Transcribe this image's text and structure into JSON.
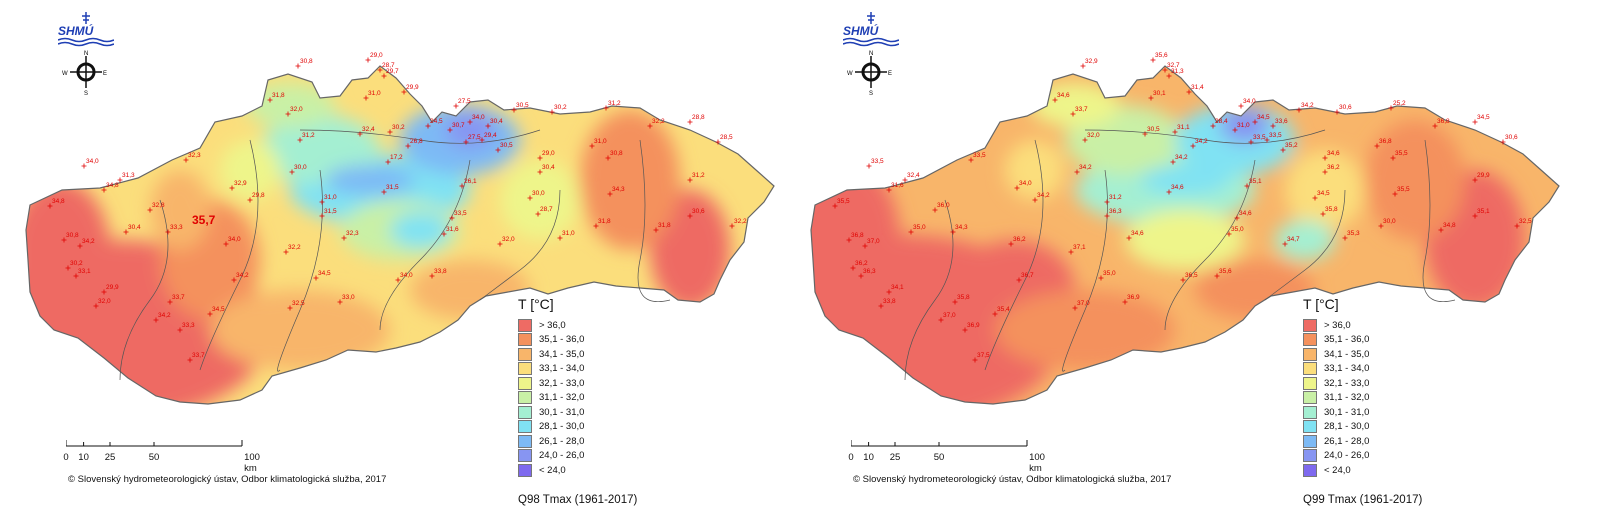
{
  "organization": "SHMÚ",
  "compass": {
    "n": "N",
    "s": "S",
    "e": "E",
    "w": "W"
  },
  "legend": {
    "title": "T [°C]",
    "classes": [
      {
        "label": "> 36,0",
        "color": "#ee6b64"
      },
      {
        "label": "35,1 - 36,0",
        "color": "#f4915d"
      },
      {
        "label": "34,1 - 35,0",
        "color": "#f8b56a"
      },
      {
        "label": "33,1 - 34,0",
        "color": "#fbde7c"
      },
      {
        "label": "32,1 - 33,0",
        "color": "#eef58a"
      },
      {
        "label": "31,1 - 32,0",
        "color": "#c9f0a6"
      },
      {
        "label": "30,1 - 31,0",
        "color": "#a4efd2"
      },
      {
        "label": "28,1 - 30,0",
        "color": "#80e2f3"
      },
      {
        "label": "26,1 - 28,0",
        "color": "#7dbaf5"
      },
      {
        "label": "24,0 - 26,0",
        "color": "#8795f2"
      },
      {
        "label": "< 24,0",
        "color": "#7e69ee"
      }
    ]
  },
  "scale": {
    "labels": [
      "0",
      "10",
      "25",
      "50",
      "100 km"
    ]
  },
  "copyright": "© Slovenský hydrometeorologický ústav, Odbor klimatologická služba, 2017",
  "maps": [
    {
      "caption": "Q98 Tmax (1961-2017)",
      "highlight": "35,7",
      "stations": [
        "30,8",
        "29,0",
        "28,7",
        "29,7",
        "31,8",
        "32,0",
        "31,0",
        "29,9",
        "27,5",
        "34,0",
        "30,4",
        "30,5",
        "30,2",
        "31,2",
        "32,4",
        "30,2",
        "26,8",
        "24,5",
        "30,7",
        "27,5",
        "29,4",
        "30,5",
        "29,0",
        "31,3",
        "32,3",
        "17,2",
        "31,2",
        "30,8",
        "32,2",
        "28,8",
        "28,5",
        "34,0",
        "34,8",
        "32,9",
        "30,0",
        "26,1",
        "30,4",
        "31,0",
        "29,8",
        "31,0",
        "31,5",
        "30,0",
        "31,2",
        "34,8",
        "32,8",
        "31,5",
        "33,5",
        "28,7",
        "31,8",
        "31,8",
        "30,6",
        "32,2",
        "30,8",
        "34,2",
        "30,4",
        "33,3",
        "34,0",
        "32,3",
        "31,6",
        "32,0",
        "31,0",
        "34,3",
        "30,2",
        "33,1",
        "29,9",
        "32,0",
        "32,2",
        "34,5",
        "33,8",
        "33,7",
        "34,2",
        "34,0",
        "32,5",
        "33,0",
        "34,2",
        "33,3",
        "34,5",
        "33,7"
      ]
    },
    {
      "caption": "Q99 Tmax (1961-2017)",
      "highlight": "",
      "stations": [
        "32,9",
        "35,6",
        "32,7",
        "31,3",
        "34,6",
        "33,7",
        "30,1",
        "31,4",
        "34,0",
        "34,5",
        "33,6",
        "34,2",
        "30,6",
        "25,2",
        "30,5",
        "31,1",
        "34,2",
        "28,4",
        "31,0",
        "33,5",
        "33,5",
        "35,2",
        "34,6",
        "32,4",
        "33,5",
        "34,2",
        "32,0",
        "35,5",
        "36,8",
        "34,5",
        "30,6",
        "33,5",
        "31,6",
        "34,0",
        "34,2",
        "35,1",
        "36,2",
        "36,8",
        "34,2",
        "31,2",
        "34,6",
        "34,5",
        "29,9",
        "35,5",
        "36,0",
        "36,3",
        "34,6",
        "35,8",
        "30,0",
        "34,8",
        "35,1",
        "32,5",
        "36,8",
        "37,0",
        "35,0",
        "34,3",
        "36,2",
        "34,6",
        "35,0",
        "34,7",
        "35,3",
        "35,5",
        "36,2",
        "36,3",
        "34,1",
        "33,8",
        "37,1",
        "35,0",
        "35,6",
        "35,8",
        "36,7",
        "36,5",
        "37,0",
        "36,9",
        "37,0",
        "36,9",
        "35,4",
        "37,5"
      ]
    }
  ]
}
